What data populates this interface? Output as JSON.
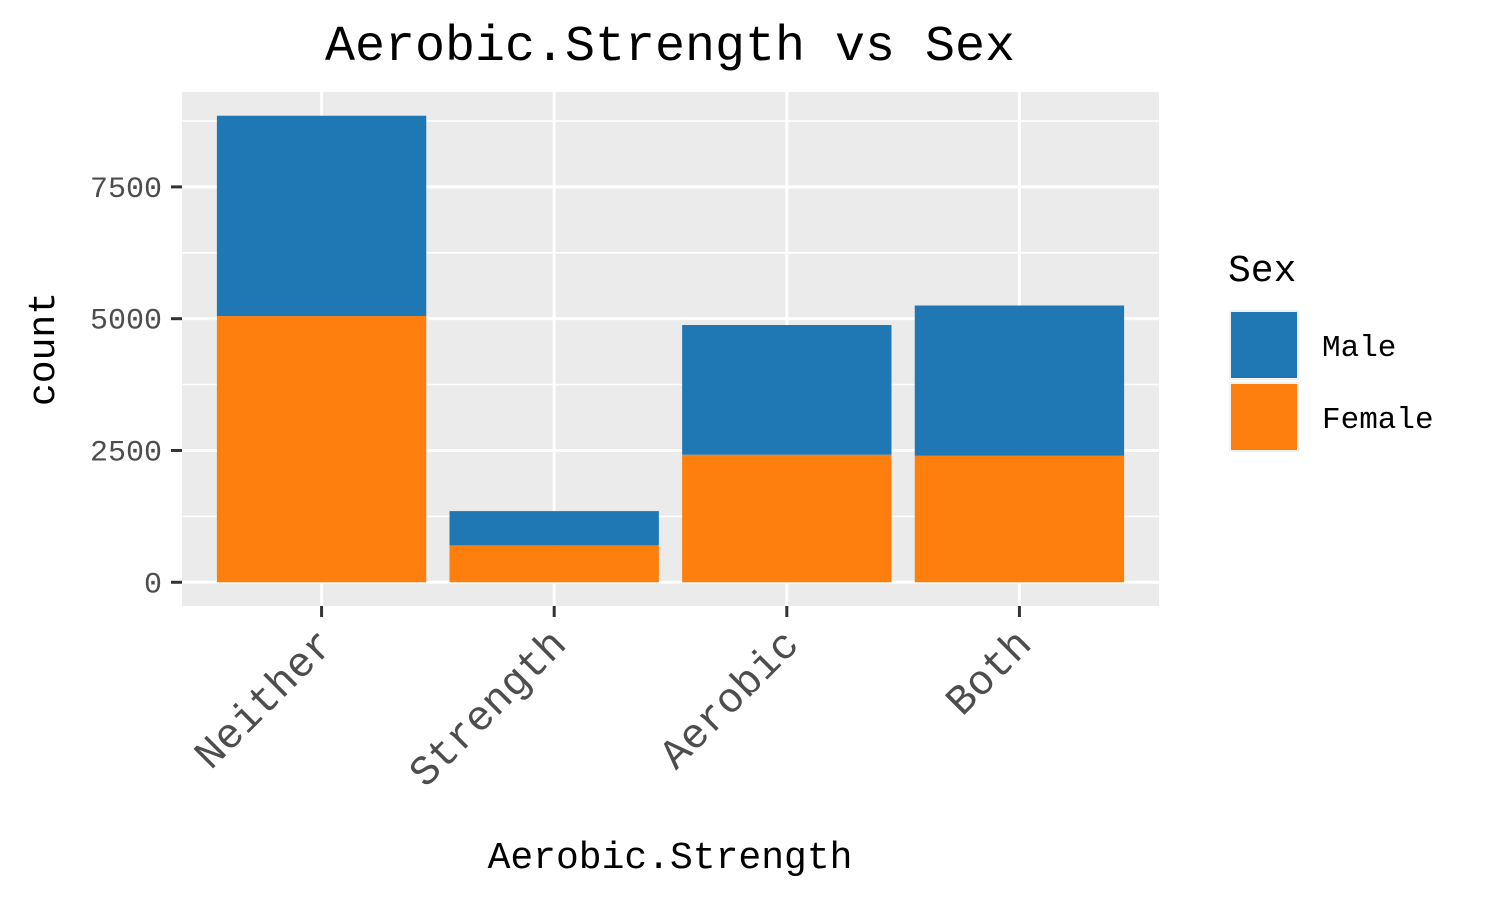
{
  "chart_data": {
    "type": "bar",
    "stacked": true,
    "title": "Aerobic.Strength vs Sex",
    "xlabel": "Aerobic.Strength",
    "ylabel": "count",
    "categories": [
      "Neither",
      "Strength",
      "Aerobic",
      "Both"
    ],
    "series": [
      {
        "name": "Female",
        "color": "#ff7f0e",
        "values": [
          5050,
          700,
          2420,
          2400
        ]
      },
      {
        "name": "Male",
        "color": "#1f77b4",
        "values": [
          3800,
          650,
          2460,
          2850
        ]
      }
    ],
    "ylim": [
      -450,
      9300
    ],
    "yticks": [
      0,
      2500,
      5000,
      7500
    ],
    "ytick_labels": [
      "0",
      "2500",
      "5000",
      "7500"
    ],
    "grid": true,
    "panel_background": "#ebebeb",
    "legend": {
      "title": "Sex",
      "placement": "right",
      "entries": [
        {
          "label": "Male",
          "color": "#1f77b4"
        },
        {
          "label": "Female",
          "color": "#ff7f0e"
        }
      ]
    }
  }
}
